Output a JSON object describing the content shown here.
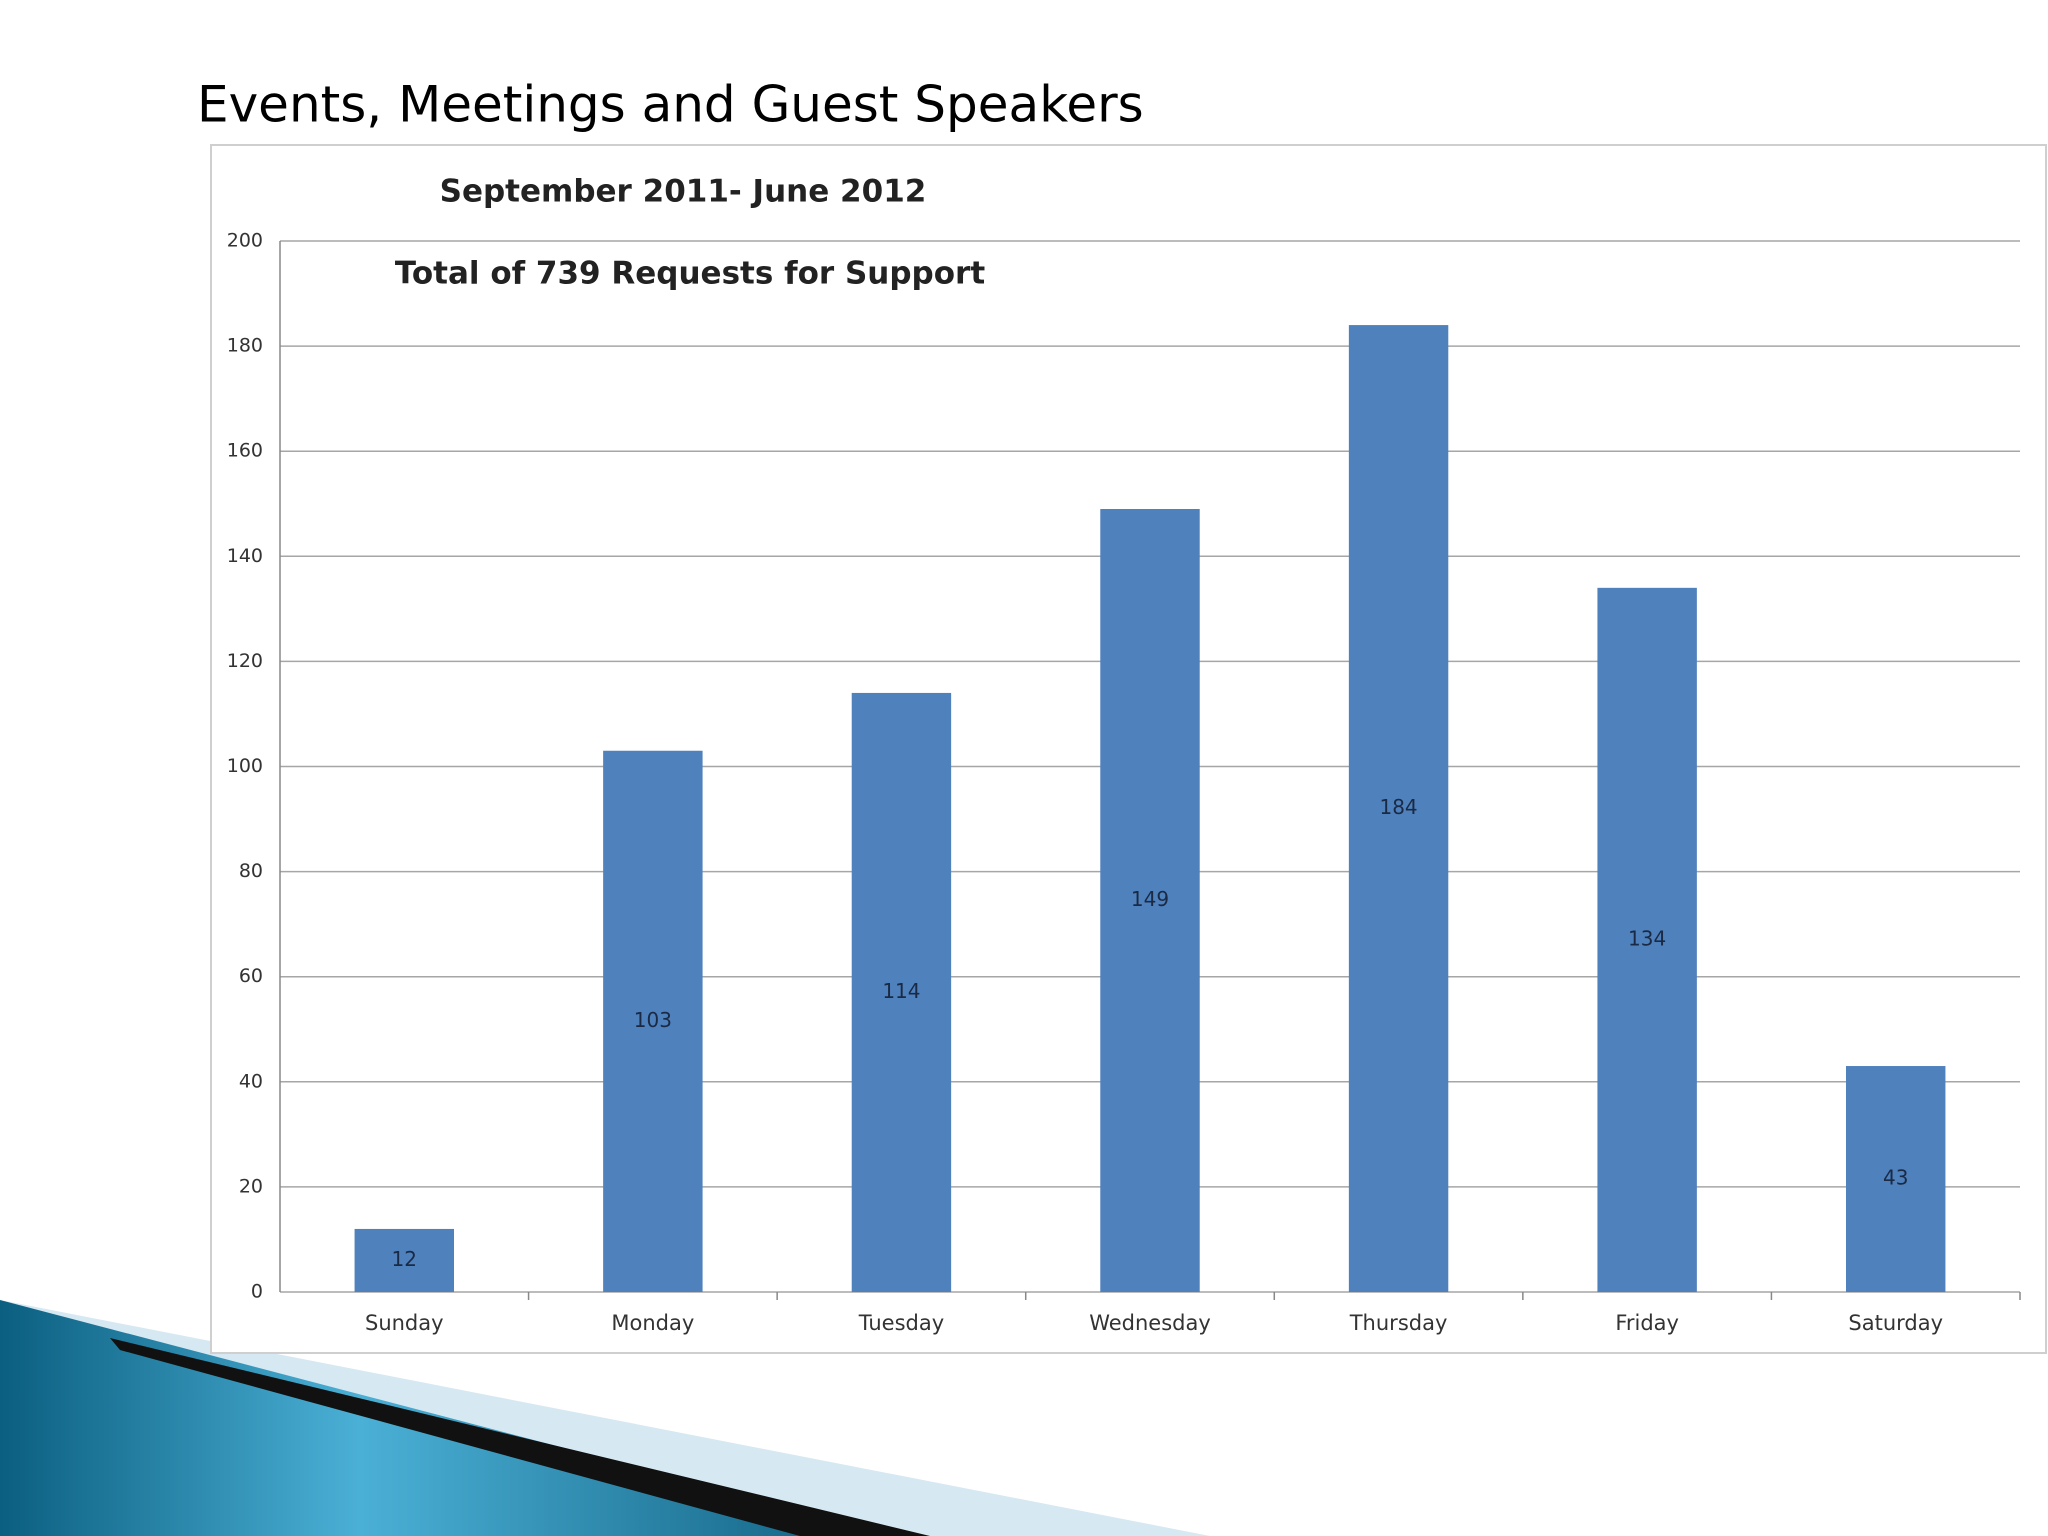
{
  "slide_title": "Events, Meetings and Guest Speakers",
  "chart_data": {
    "type": "bar",
    "title": "September 2011- June 2012",
    "annotation": "Total of 739 Requests for Support",
    "categories": [
      "Sunday",
      "Monday",
      "Tuesday",
      "Wednesday",
      "Thursday",
      "Friday",
      "Saturday"
    ],
    "values": [
      12,
      103,
      114,
      149,
      184,
      134,
      43
    ],
    "color": "#4f81bd",
    "ylim": [
      0,
      200
    ],
    "yticks": [
      0,
      20,
      40,
      60,
      80,
      100,
      120,
      140,
      160,
      180,
      200
    ],
    "grid": true
  }
}
